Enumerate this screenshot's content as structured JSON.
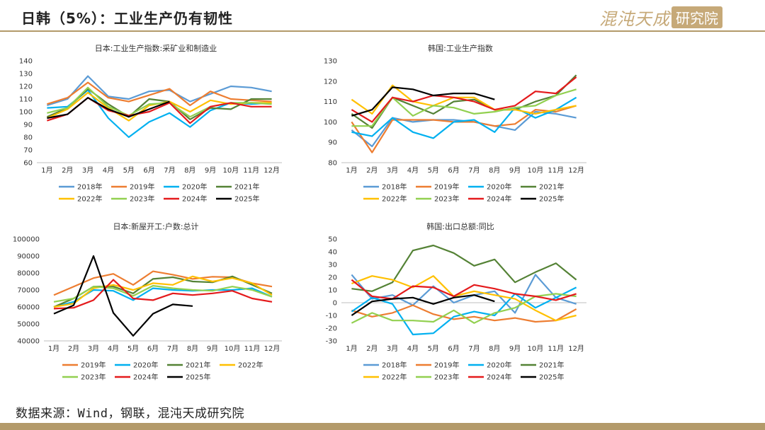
{
  "header": {
    "title": "日韩（5%）：工业生产仍有韧性",
    "logo_text": "混沌天成",
    "logo_box": "研究院"
  },
  "footer": {
    "source": "数据来源：Wind，钢联，混沌天成研究院"
  },
  "colors": {
    "2018年": "#5b9bd5",
    "2019年": "#ed7d31",
    "2020年": "#00b0f0",
    "2021年": "#548235",
    "2022年": "#ffc000",
    "2023年": "#92d050",
    "2024年": "#e41a1c",
    "2025年": "#000000",
    "accent": "#b39a6a"
  },
  "chart_data": [
    {
      "type": "line",
      "title": "日本:工业生产指数:采矿业和制造业",
      "categories": [
        "1月",
        "2月",
        "3月",
        "4月",
        "5月",
        "6月",
        "7月",
        "8月",
        "9月",
        "10月",
        "11月",
        "12月"
      ],
      "ylim": [
        60,
        140
      ],
      "yticks": [
        60,
        70,
        80,
        90,
        100,
        110,
        120,
        130,
        140
      ],
      "legend_position": "bottom",
      "series": [
        {
          "name": "2018年",
          "values": [
            105,
            110,
            128,
            112,
            110,
            116,
            117,
            108,
            114,
            120,
            119,
            116
          ]
        },
        {
          "name": "2019年",
          "values": [
            106,
            111,
            123,
            111,
            108,
            113,
            118,
            105,
            116,
            110,
            109,
            108
          ]
        },
        {
          "name": "2020年",
          "values": [
            103,
            104,
            117,
            95,
            80,
            92,
            99,
            88,
            101,
            107,
            106,
            107
          ]
        },
        {
          "name": "2021年",
          "values": [
            96,
            103,
            118,
            106,
            96,
            110,
            108,
            94,
            103,
            102,
            110,
            110
          ]
        },
        {
          "name": "2022年",
          "values": [
            95,
            102,
            115,
            103,
            93,
            105,
            108,
            100,
            109,
            106,
            107,
            107
          ]
        },
        {
          "name": "2023年",
          "values": [
            99,
            103,
            119,
            104,
            97,
            106,
            107,
            96,
            104,
            107,
            107,
            106
          ]
        },
        {
          "name": "2024年",
          "values": [
            93,
            98,
            111,
            101,
            97,
            100,
            107,
            91,
            104,
            107,
            104,
            104
          ]
        },
        {
          "name": "2025年",
          "values": [
            95,
            98,
            111,
            102,
            96,
            102,
            108,
            null,
            null,
            null,
            null,
            null
          ]
        }
      ]
    },
    {
      "type": "line",
      "title": "韩国:工业生产指数",
      "categories": [
        "1月",
        "2月",
        "3月",
        "4月",
        "5月",
        "6月",
        "7月",
        "8月",
        "9月",
        "10月",
        "11月",
        "12月"
      ],
      "ylim": [
        80,
        130
      ],
      "yticks": [
        80,
        90,
        100,
        110,
        120,
        130
      ],
      "legend_position": "bottom",
      "series": [
        {
          "name": "2018年",
          "values": [
            96,
            88,
            102,
            100,
            101,
            101,
            100,
            98,
            96,
            105,
            104,
            102
          ]
        },
        {
          "name": "2019年",
          "values": [
            100,
            85,
            101,
            101,
            101,
            100,
            100,
            98,
            99,
            106,
            105,
            108
          ]
        },
        {
          "name": "2020年",
          "values": [
            95,
            93,
            102,
            95,
            92,
            100,
            101,
            95,
            107,
            102,
            106,
            112
          ]
        },
        {
          "name": "2021年",
          "values": [
            104,
            97,
            112,
            108,
            104,
            110,
            111,
            106,
            106,
            110,
            113,
            123
          ]
        },
        {
          "name": "2022年",
          "values": [
            111,
            104,
            118,
            110,
            108,
            112,
            112,
            106,
            106,
            104,
            106,
            108
          ]
        },
        {
          "name": "2023年",
          "values": [
            98,
            98,
            112,
            103,
            108,
            107,
            104,
            105,
            107,
            108,
            113,
            116
          ]
        },
        {
          "name": "2024年",
          "values": [
            106,
            100,
            112,
            110,
            113,
            112,
            110,
            106,
            108,
            115,
            114,
            122
          ]
        },
        {
          "name": "2025年",
          "values": [
            103,
            106,
            117,
            116,
            113,
            114,
            114,
            111,
            null,
            null,
            null,
            null
          ]
        }
      ]
    },
    {
      "type": "line",
      "title": "日本:新屋开工:户数:总计",
      "categories": [
        "1月",
        "2月",
        "3月",
        "4月",
        "5月",
        "6月",
        "7月",
        "8月",
        "9月",
        "10月",
        "11月",
        "12月"
      ],
      "ylim": [
        40000,
        100000
      ],
      "yticks": [
        40000,
        50000,
        60000,
        70000,
        80000,
        90000,
        100000
      ],
      "legend_position": "bottom",
      "series": [
        {
          "name": "2019年",
          "values": [
            67000,
            72000,
            77000,
            79500,
            73000,
            81000,
            79000,
            76500,
            77800,
            77500,
            74000,
            72000
          ]
        },
        {
          "name": "2020年",
          "values": [
            60000,
            63000,
            70000,
            69500,
            64000,
            71000,
            70000,
            69500,
            70000,
            70000,
            71000,
            66000
          ]
        },
        {
          "name": "2021年",
          "values": [
            60000,
            65000,
            72000,
            72000,
            68000,
            76500,
            77500,
            75000,
            74500,
            78000,
            73000,
            68000
          ]
        },
        {
          "name": "2022年",
          "values": [
            60000,
            62000,
            71000,
            73000,
            70000,
            74000,
            73000,
            78000,
            75000,
            77000,
            74000,
            67000
          ]
        },
        {
          "name": "2023年",
          "values": [
            63000,
            65000,
            72000,
            71000,
            66500,
            72500,
            71000,
            70000,
            69500,
            72000,
            70000,
            66000
          ]
        },
        {
          "name": "2024年",
          "values": [
            59000,
            59500,
            64000,
            76000,
            65000,
            64000,
            68000,
            67000,
            68000,
            69500,
            65000,
            63000
          ]
        },
        {
          "name": "2025年",
          "values": [
            56000,
            61000,
            90000,
            56500,
            43000,
            56000,
            61500,
            60500,
            null,
            null,
            null,
            null
          ]
        }
      ]
    },
    {
      "type": "line",
      "title": "韩国:出口总额:同比",
      "categories": [
        "1月",
        "2月",
        "3月",
        "4月",
        "5月",
        "6月",
        "7月",
        "8月",
        "9月",
        "10月",
        "11月",
        "12月"
      ],
      "ylim": [
        -30,
        50
      ],
      "yticks": [
        -30,
        -20,
        -10,
        0,
        10,
        20,
        30,
        40,
        50
      ],
      "legend_position": "bottom",
      "series": [
        {
          "name": "2018年",
          "values": [
            22,
            3,
            6,
            -2,
            13,
            0,
            6,
            9,
            -8,
            22,
            4,
            -1
          ]
        },
        {
          "name": "2019年",
          "values": [
            -6,
            -11,
            -8,
            -2,
            -9,
            -13,
            -11,
            -14,
            -12,
            -15,
            -14,
            -5
          ]
        },
        {
          "name": "2020年",
          "values": [
            -7,
            4,
            -1,
            -25,
            -24,
            -11,
            -7,
            -10,
            7,
            -4,
            4,
            12
          ]
        },
        {
          "name": "2021年",
          "values": [
            11,
            9,
            16,
            41,
            45,
            39,
            29,
            34,
            16,
            24,
            31,
            18
          ]
        },
        {
          "name": "2022年",
          "values": [
            15,
            21,
            18,
            12,
            21,
            5,
            9,
            6,
            3,
            -6,
            -14,
            -10
          ]
        },
        {
          "name": "2023年",
          "values": [
            -16,
            -8,
            -14,
            -14,
            -15,
            -6,
            -16,
            -8,
            -4,
            5,
            7,
            5
          ]
        },
        {
          "name": "2024年",
          "values": [
            18,
            5,
            3,
            13,
            12,
            5,
            14,
            11,
            7,
            5,
            2,
            7
          ]
        },
        {
          "name": "2025年",
          "values": [
            -10,
            1,
            3,
            4,
            -1,
            4,
            6,
            1,
            null,
            null,
            null,
            null
          ]
        }
      ]
    }
  ]
}
